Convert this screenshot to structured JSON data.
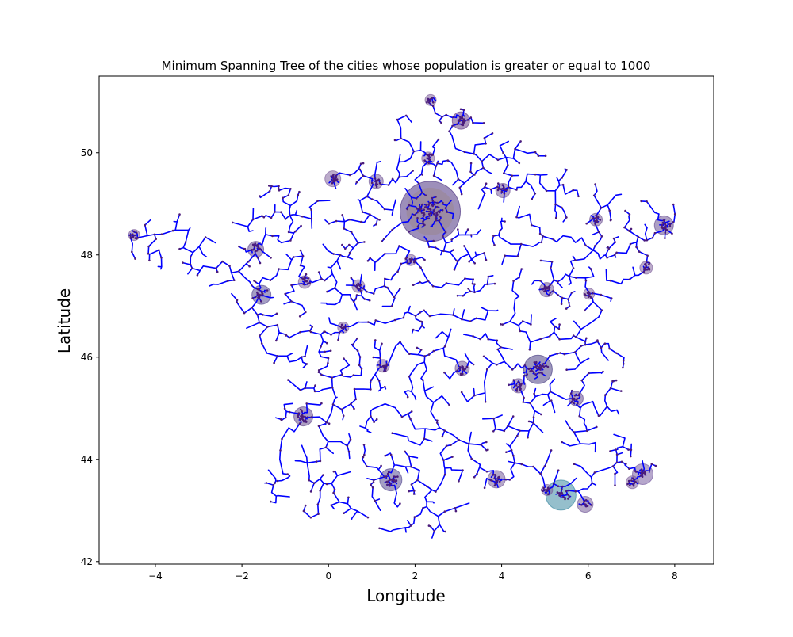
{
  "chart_data": {
    "type": "scatter",
    "title": "Minimum Spanning Tree of the cities whose population is greater or equal to 1000",
    "xlabel": "Longitude",
    "ylabel": "Latitude",
    "xlim": [
      -5.3,
      8.9
    ],
    "ylim": [
      41.95,
      51.5
    ],
    "xticks": [
      -4,
      -2,
      0,
      2,
      4,
      6,
      8
    ],
    "yticks": [
      42,
      44,
      46,
      48,
      50
    ],
    "grid": false,
    "legend": "none",
    "edge_color": "#0000ff",
    "node_color": "#4b1c7a",
    "hubs": [
      {
        "x": 2.35,
        "y": 48.85,
        "r": 38,
        "color": "#3b1f75"
      },
      {
        "x": 5.37,
        "y": 43.3,
        "r": 19,
        "color": "#2c7f9a"
      },
      {
        "x": 4.84,
        "y": 45.76,
        "r": 18,
        "color": "#3b2f7a"
      },
      {
        "x": 1.44,
        "y": 43.6,
        "r": 14,
        "color": "#4a3d8a"
      },
      {
        "x": 7.26,
        "y": 43.71,
        "r": 13,
        "color": "#6d4f9a"
      },
      {
        "x": 7.75,
        "y": 48.58,
        "r": 12,
        "color": "#5b3f8a"
      },
      {
        "x": -1.55,
        "y": 47.22,
        "r": 12,
        "color": "#4b3d8a"
      },
      {
        "x": -0.58,
        "y": 44.84,
        "r": 12,
        "color": "#5a3d86"
      },
      {
        "x": 3.06,
        "y": 50.63,
        "r": 11,
        "color": "#5b2f80"
      },
      {
        "x": 3.88,
        "y": 43.61,
        "r": 11,
        "color": "#6b4f92"
      },
      {
        "x": -1.68,
        "y": 48.11,
        "r": 10,
        "color": "#5b3f8a"
      },
      {
        "x": 0.1,
        "y": 49.49,
        "r": 10,
        "color": "#7a5a98"
      },
      {
        "x": 1.1,
        "y": 49.44,
        "r": 9,
        "color": "#6b4f92"
      },
      {
        "x": 4.03,
        "y": 49.26,
        "r": 9,
        "color": "#6b4f92"
      },
      {
        "x": 4.39,
        "y": 45.44,
        "r": 9,
        "color": "#6b4f92"
      },
      {
        "x": 5.93,
        "y": 43.12,
        "r": 10,
        "color": "#6b4f92"
      },
      {
        "x": 5.72,
        "y": 45.19,
        "r": 9,
        "color": "#5b3f8a"
      },
      {
        "x": 5.04,
        "y": 47.32,
        "r": 9,
        "color": "#6b4f92"
      },
      {
        "x": 3.09,
        "y": 45.78,
        "r": 9,
        "color": "#6b4f92"
      },
      {
        "x": 0.69,
        "y": 47.39,
        "r": 8,
        "color": "#7a5a98"
      },
      {
        "x": -0.55,
        "y": 47.47,
        "r": 8,
        "color": "#7a5a98"
      },
      {
        "x": 6.18,
        "y": 48.69,
        "r": 8,
        "color": "#6b4f92"
      },
      {
        "x": 1.26,
        "y": 45.83,
        "r": 8,
        "color": "#7a5a98"
      },
      {
        "x": 2.3,
        "y": 49.89,
        "r": 8,
        "color": "#7a5a98"
      },
      {
        "x": 7.34,
        "y": 47.75,
        "r": 8,
        "color": "#7a5a98"
      },
      {
        "x": 1.9,
        "y": 47.9,
        "r": 7,
        "color": "#7a5a98"
      },
      {
        "x": 0.34,
        "y": 46.58,
        "r": 7,
        "color": "#7a5a98"
      },
      {
        "x": 6.02,
        "y": 47.24,
        "r": 7,
        "color": "#7a5a98"
      },
      {
        "x": -4.49,
        "y": 48.39,
        "r": 7,
        "color": "#7a5a98"
      },
      {
        "x": 2.36,
        "y": 51.03,
        "r": 7,
        "color": "#7a5a98"
      },
      {
        "x": 7.02,
        "y": 43.55,
        "r": 8,
        "color": "#7a5a98"
      },
      {
        "x": 5.05,
        "y": 43.4,
        "r": 7,
        "color": "#7a5a98"
      }
    ]
  }
}
